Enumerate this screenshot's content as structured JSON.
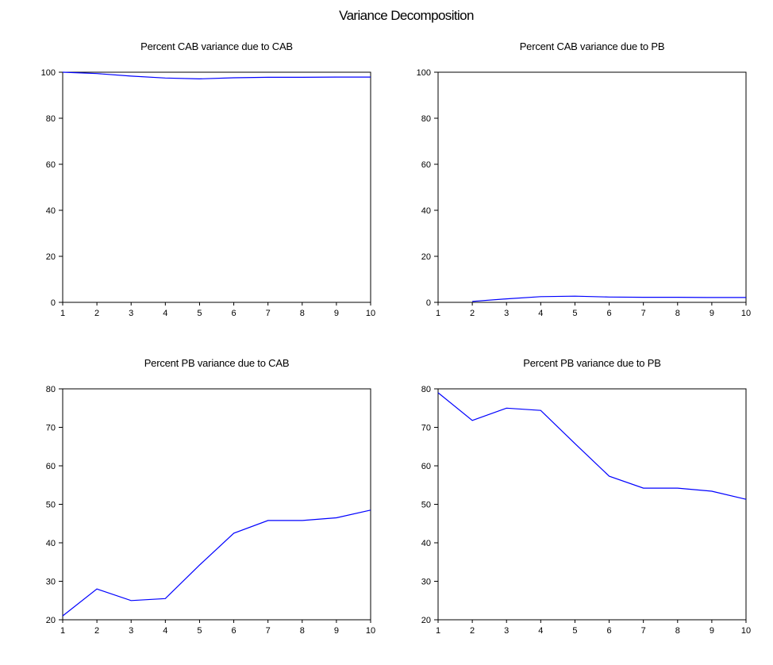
{
  "figure": {
    "title": "Variance Decomposition"
  },
  "chart_data": [
    {
      "type": "line",
      "title": "Percent CAB variance due to CAB",
      "xlabel": "",
      "ylabel": "",
      "x": [
        1,
        2,
        3,
        4,
        5,
        6,
        7,
        8,
        9,
        10
      ],
      "xticks": [
        "1",
        "2",
        "3",
        "4",
        "5",
        "6",
        "7",
        "8",
        "9",
        "10"
      ],
      "xlim": [
        1,
        10
      ],
      "ylim": [
        0,
        100
      ],
      "yticks": [
        "0",
        "20",
        "40",
        "60",
        "80",
        "100"
      ],
      "grid": false,
      "series": [
        {
          "values": [
            100,
            99.4,
            98.3,
            97.5,
            97.1,
            97.6,
            97.8,
            97.8,
            97.9,
            97.9
          ],
          "color": "#0000ff"
        }
      ]
    },
    {
      "type": "line",
      "title": "Percent CAB variance due to PB",
      "xlabel": "",
      "ylabel": "",
      "x": [
        1,
        2,
        3,
        4,
        5,
        6,
        7,
        8,
        9,
        10
      ],
      "xticks": [
        "1",
        "2",
        "3",
        "4",
        "5",
        "6",
        "7",
        "8",
        "9",
        "10"
      ],
      "xlim": [
        1,
        10
      ],
      "ylim": [
        0,
        100
      ],
      "yticks": [
        "0",
        "20",
        "40",
        "60",
        "80",
        "100"
      ],
      "grid": false,
      "series": [
        {
          "values": [
            null,
            0.4,
            1.5,
            2.5,
            2.7,
            2.3,
            2.2,
            2.2,
            2.1,
            2.1
          ],
          "color": "#0000ff"
        }
      ]
    },
    {
      "type": "line",
      "title": "Percent PB variance due to CAB",
      "xlabel": "",
      "ylabel": "",
      "x": [
        1,
        2,
        3,
        4,
        5,
        6,
        7,
        8,
        9,
        10
      ],
      "xticks": [
        "1",
        "2",
        "3",
        "4",
        "5",
        "6",
        "7",
        "8",
        "9",
        "10"
      ],
      "xlim": [
        1,
        10
      ],
      "ylim": [
        20,
        80
      ],
      "yticks": [
        "20",
        "30",
        "40",
        "50",
        "60",
        "70",
        "80"
      ],
      "grid": false,
      "series": [
        {
          "values": [
            21,
            28,
            25,
            25.5,
            34.2,
            42.5,
            45.8,
            45.8,
            46.5,
            48.5
          ],
          "color": "#0000ff"
        }
      ]
    },
    {
      "type": "line",
      "title": "Percent PB variance due to PB",
      "xlabel": "",
      "ylabel": "",
      "x": [
        1,
        2,
        3,
        4,
        5,
        6,
        7,
        8,
        9,
        10
      ],
      "xticks": [
        "1",
        "2",
        "3",
        "4",
        "5",
        "6",
        "7",
        "8",
        "9",
        "10"
      ],
      "xlim": [
        1,
        10
      ],
      "ylim": [
        20,
        80
      ],
      "yticks": [
        "20",
        "30",
        "40",
        "50",
        "60",
        "70",
        "80"
      ],
      "grid": false,
      "series": [
        {
          "values": [
            79,
            71.8,
            75,
            74.4,
            65.8,
            57.3,
            54.2,
            54.2,
            53.4,
            51.3
          ],
          "color": "#0000ff"
        }
      ]
    }
  ]
}
